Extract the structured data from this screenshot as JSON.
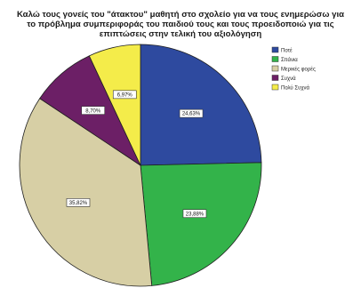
{
  "chart_data": {
    "type": "pie",
    "title_lines": [
      "Καλώ τους γονείς του \"άτακτου\" μαθητή στο σχολείο για να τους ενημερώσω για",
      "το πρόβλημα συμπεριφοράς του παιδιού τους και τους προειδοποιώ για τις",
      "επιπτώσεις στην τελική του αξιολόγηση"
    ],
    "legend_position": "right",
    "slices": [
      {
        "name": "Ποτέ",
        "value": 24.63,
        "label": "24,63%",
        "color": "#2e4a9f"
      },
      {
        "name": "Σπάνια",
        "value": 23.88,
        "label": "23,88%",
        "color": "#33b34a"
      },
      {
        "name": "Μερικές φορές",
        "value": 35.82,
        "label": "35,82%",
        "color": "#d7cfa5"
      },
      {
        "name": "Συχνά",
        "value": 8.7,
        "label": "8,70%",
        "color": "#6c1f66"
      },
      {
        "name": "Πολύ Συχνά",
        "value": 6.97,
        "label": "6,97%",
        "color": "#f4ec4a"
      }
    ]
  }
}
